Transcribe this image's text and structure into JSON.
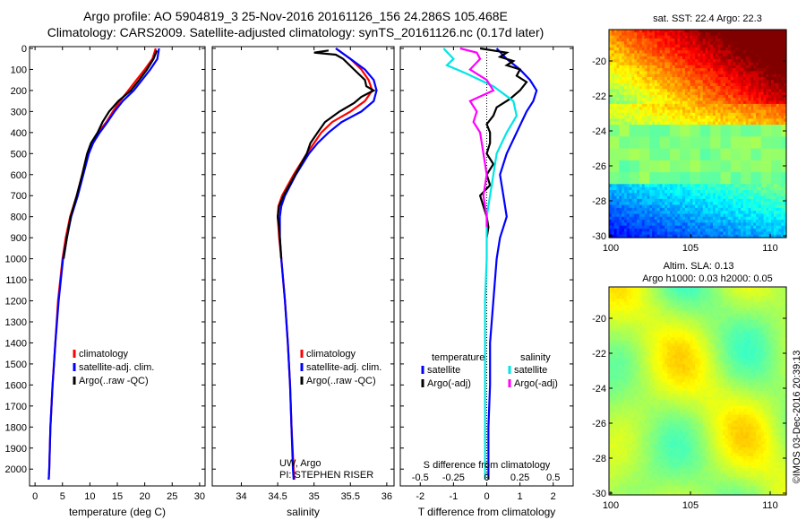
{
  "header": {
    "line1": "Argo profile: AO 5904819_3 25-Nov-2016 20161126_156 24.286S 105.468E",
    "line2": "Climatology: CARS2009. Satellite-adjusted climatology: synTS_20161126.nc (0.17d later)"
  },
  "chart_data": [
    {
      "type": "line",
      "id": "temperature",
      "xlabel": "temperature (deg C)",
      "xlim": [
        -1,
        31
      ],
      "xticks": [
        0,
        5,
        10,
        15,
        20,
        25,
        30
      ],
      "ylim": [
        2080,
        0
      ],
      "yticks": [
        0,
        100,
        200,
        300,
        400,
        500,
        600,
        700,
        800,
        900,
        1000,
        1100,
        1200,
        1300,
        1400,
        1500,
        1600,
        1700,
        1800,
        1900,
        2000
      ],
      "legend": [
        "climatology",
        "satellite-adj. clim.",
        "Argo(..raw -QC)"
      ],
      "series": [
        {
          "name": "climatology",
          "color": "#ff0000",
          "y": [
            0,
            50,
            100,
            150,
            200,
            250,
            300,
            350,
            400,
            450,
            500,
            600,
            700,
            800,
            900,
            1000,
            1200,
            1400,
            1600,
            1800,
            2000,
            2050
          ],
          "x": [
            22.0,
            21.4,
            20.0,
            18.5,
            17.0,
            15.5,
            14.2,
            13.0,
            11.5,
            10.3,
            9.6,
            8.6,
            7.6,
            6.4,
            5.6,
            5.0,
            4.2,
            3.7,
            3.2,
            2.8,
            2.6,
            2.5
          ]
        },
        {
          "name": "satellite-adj. clim.",
          "color": "#0000ff",
          "y": [
            0,
            50,
            100,
            150,
            200,
            250,
            300,
            350,
            400,
            450,
            500,
            600,
            700,
            800,
            900,
            1000,
            1200,
            1400,
            1600,
            1800,
            2000,
            2050
          ],
          "x": [
            22.6,
            22.3,
            21.0,
            19.5,
            18.0,
            16.0,
            14.5,
            13.2,
            11.8,
            10.6,
            9.8,
            8.8,
            7.8,
            6.6,
            5.8,
            5.1,
            4.3,
            3.7,
            3.2,
            2.8,
            2.6,
            2.5
          ]
        },
        {
          "name": "Argo(..raw -QC)",
          "color": "#000000",
          "y": [
            10,
            50,
            100,
            150,
            200,
            250,
            300,
            350,
            400,
            450,
            500,
            600,
            700,
            800,
            900,
            1000
          ],
          "x": [
            22.2,
            21.6,
            20.4,
            19.0,
            17.5,
            15.2,
            13.5,
            12.3,
            11.4,
            10.2,
            9.5,
            8.6,
            7.6,
            6.5,
            5.8,
            5.2
          ]
        }
      ]
    },
    {
      "type": "line",
      "id": "salinity",
      "xlabel": "salinity",
      "xlim": [
        33.6,
        36.1
      ],
      "xticks": [
        34,
        34.5,
        35,
        35.5,
        36
      ],
      "ylim": [
        2080,
        0
      ],
      "legend": [
        "climatology",
        "satellite-adj. clim.",
        "Argo(..raw -QC)"
      ],
      "annotation": [
        "UW, Argo",
        "PI: STEPHEN RISER"
      ],
      "series": [
        {
          "name": "climatology",
          "color": "#ff0000",
          "y": [
            0,
            50,
            100,
            150,
            200,
            250,
            300,
            350,
            400,
            450,
            500,
            600,
            700,
            750,
            800,
            900,
            1000,
            1200,
            1400,
            1600,
            1800,
            2000,
            2050
          ],
          "x": [
            35.3,
            35.5,
            35.65,
            35.75,
            35.8,
            35.7,
            35.5,
            35.25,
            35.1,
            35.0,
            34.9,
            34.72,
            34.56,
            34.51,
            34.5,
            34.52,
            34.55,
            34.6,
            34.64,
            34.67,
            34.69,
            34.72,
            34.73
          ]
        },
        {
          "name": "satellite-adj. clim.",
          "color": "#0000ff",
          "y": [
            0,
            50,
            100,
            150,
            200,
            250,
            300,
            350,
            400,
            450,
            500,
            600,
            700,
            750,
            800,
            900,
            1000,
            1200,
            1400,
            1600,
            1800,
            2000,
            2050
          ],
          "x": [
            35.3,
            35.5,
            35.7,
            35.82,
            35.86,
            35.82,
            35.65,
            35.38,
            35.2,
            35.05,
            34.93,
            34.75,
            34.6,
            34.55,
            34.53,
            34.53,
            34.55,
            34.6,
            34.64,
            34.67,
            34.69,
            34.71,
            34.72
          ]
        },
        {
          "name": "Argo(..raw -QC)",
          "color": "#000000",
          "y": [
            10,
            20,
            30,
            50,
            100,
            150,
            180,
            200,
            230,
            260,
            300,
            350,
            400,
            450,
            500,
            600,
            700,
            750,
            800,
            850,
            900,
            1000
          ],
          "x": [
            35.2,
            35.0,
            35.3,
            35.4,
            35.55,
            35.7,
            35.72,
            35.82,
            35.65,
            35.55,
            35.35,
            35.15,
            35.05,
            34.95,
            34.9,
            34.74,
            34.58,
            34.52,
            34.5,
            34.52,
            34.53,
            34.55
          ]
        }
      ]
    },
    {
      "type": "line",
      "id": "difference",
      "xlabel": "T difference from climatology",
      "xlabel2": "S difference from climatology",
      "xlim": [
        -2.6,
        2.6
      ],
      "xticks": [
        -2,
        -1,
        0,
        1,
        2
      ],
      "sticks": [
        "-0.5",
        "-0.25",
        "0",
        "0.25",
        "0.5"
      ],
      "stick_pos": [
        -2,
        -1,
        0,
        1,
        2
      ],
      "ylim": [
        2080,
        0
      ],
      "legend_titles": [
        "temperature",
        "salinity"
      ],
      "legend": [
        "satellite",
        "Argo(-adj)",
        "satellite",
        "Argo(-adj)"
      ],
      "series": [
        {
          "name": "satellite",
          "color": "#0000ff",
          "y": [
            0,
            50,
            100,
            150,
            200,
            250,
            300,
            400,
            500,
            600,
            700,
            800,
            900,
            1000,
            1200,
            1400,
            1600,
            1800,
            2000,
            2050
          ],
          "x": [
            0.3,
            0.6,
            1.0,
            1.3,
            1.5,
            1.4,
            1.2,
            0.9,
            0.6,
            0.4,
            0.5,
            0.6,
            0.4,
            0.3,
            0.2,
            0.1,
            0.1,
            0.05,
            0.05,
            0.05
          ]
        },
        {
          "name": "Argo(-adj)",
          "color": "#000000",
          "y": [
            0,
            20,
            40,
            60,
            80,
            100,
            130,
            160,
            200,
            240,
            280,
            320,
            360,
            400,
            450,
            500,
            550,
            600,
            650,
            700,
            750,
            800,
            850,
            900
          ],
          "x": [
            -0.2,
            0.6,
            0.4,
            0.8,
            0.6,
            1.0,
            0.9,
            1.2,
            1.0,
            0.7,
            0.3,
            0.2,
            0.0,
            0.1,
            0.1,
            0.0,
            0.2,
            0.0,
            0.1,
            -0.2,
            -0.1,
            0.0,
            0.05,
            0.0
          ]
        },
        {
          "name": "satellite (S)",
          "color": "#00e6e6",
          "y": [
            0,
            50,
            80,
            120,
            180,
            250,
            320,
            400,
            500,
            600,
            700,
            800,
            900,
            1000,
            1200,
            1400,
            1600,
            1800,
            2000,
            2050
          ],
          "x": [
            -1.3,
            -1.0,
            -1.2,
            -0.6,
            0.2,
            0.8,
            0.9,
            0.6,
            0.3,
            0.2,
            0.1,
            0.0,
            0.0,
            0.0,
            -0.05,
            -0.05,
            -0.05,
            -0.05,
            -0.05,
            -0.05
          ]
        },
        {
          "name": "Argo(-adj) (S)",
          "color": "#ff00ff",
          "y": [
            0,
            20,
            50,
            100,
            150,
            200,
            250,
            300,
            350,
            400,
            500,
            600,
            700,
            800,
            850
          ],
          "x": [
            -0.8,
            -0.3,
            -0.2,
            -0.5,
            0.0,
            0.2,
            -0.5,
            -0.3,
            -0.4,
            -0.2,
            -0.1,
            0.0,
            -0.1,
            0.0,
            0.0
          ]
        }
      ]
    }
  ],
  "maps": {
    "sst": {
      "title": "sat. SST: 22.4  Argo: 22.3",
      "yticks": [
        "-20",
        "-22",
        "-24",
        "-26",
        "-28",
        "-30"
      ],
      "xticks": [
        "100",
        "105",
        "110"
      ]
    },
    "sla": {
      "title1": "Altim. SLA: 0.13",
      "title2": "Argo h1000: 0.03  h2000: 0.05",
      "yticks": [
        "-20",
        "-22",
        "-24",
        "-26",
        "-28",
        "-30"
      ],
      "xticks": [
        "100",
        "105",
        "110"
      ]
    },
    "credit": "©IMOS 03-Dec-2016 20:39:13"
  }
}
